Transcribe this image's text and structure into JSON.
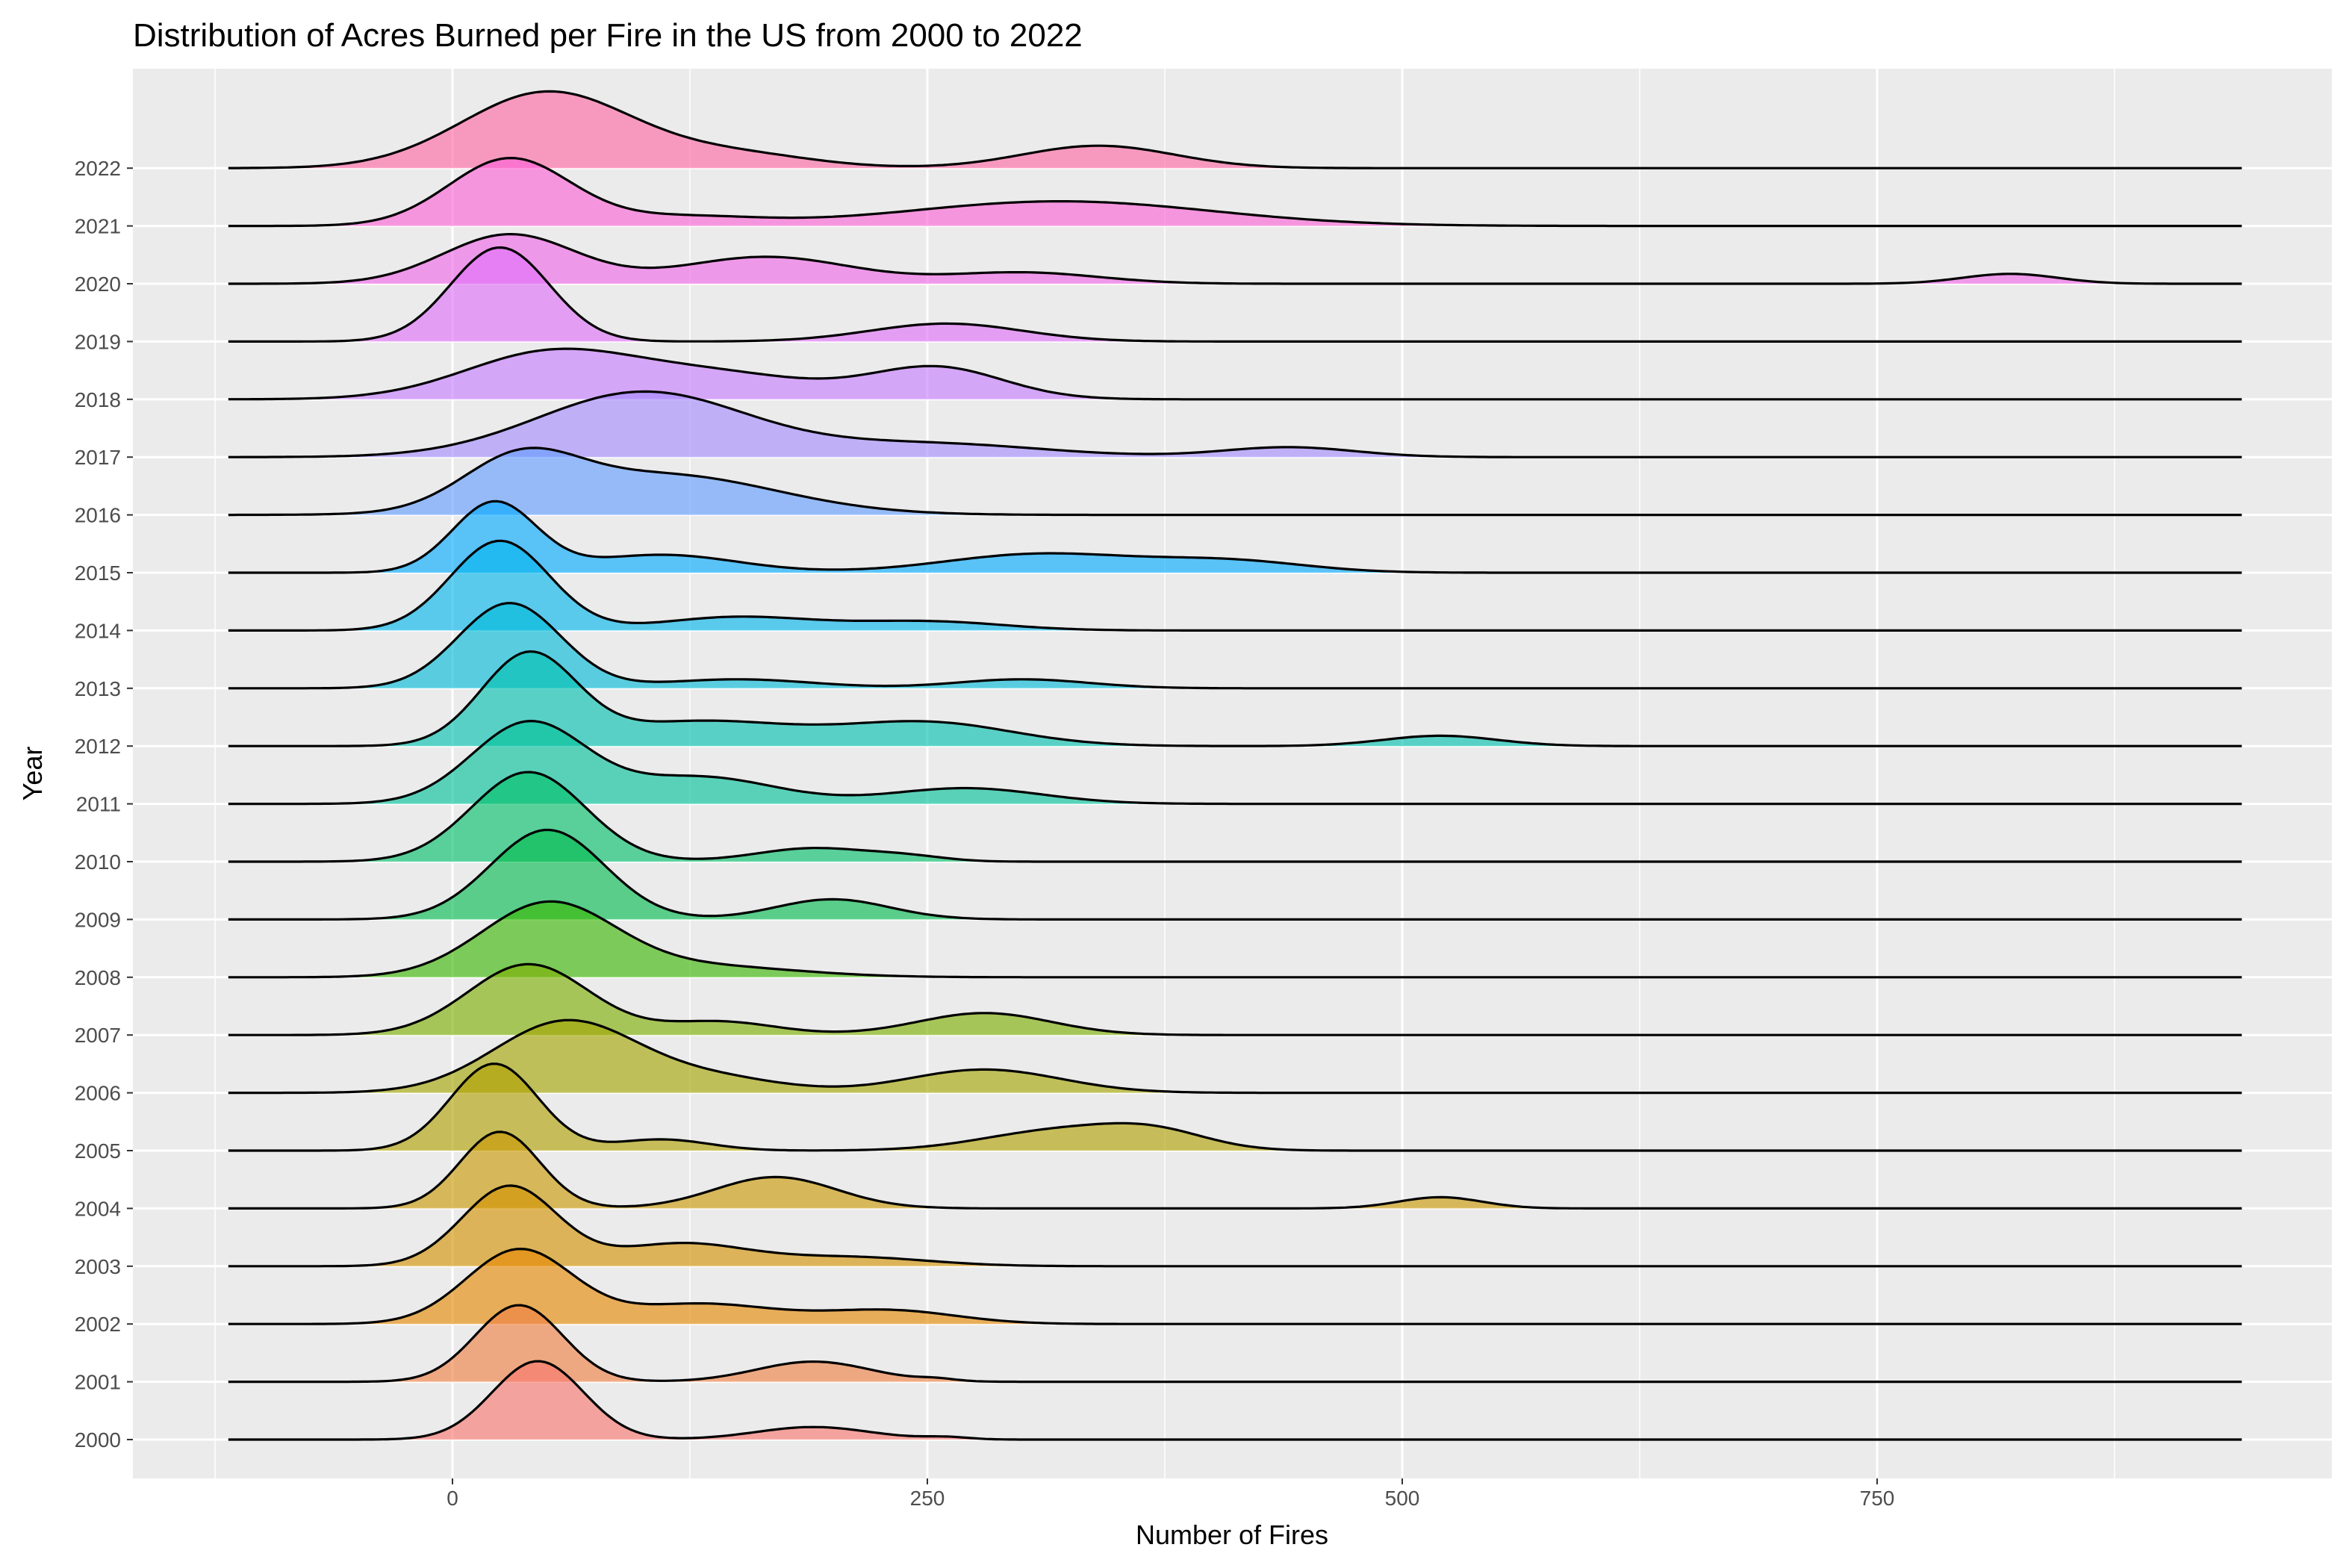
{
  "chart_data": {
    "type": "ridgeline",
    "title": "Distribution of Acres Burned per Fire in the US from 2000 to 2022",
    "xlabel": "Number of Fires",
    "ylabel": "Year",
    "xlim": [
      -170,
      990
    ],
    "x_ticks": [
      0,
      250,
      500,
      750
    ],
    "x_tick_labels": [
      "0",
      "250",
      "500",
      "750"
    ],
    "x_minor_ticks": [
      -125,
      125,
      375,
      625,
      875
    ],
    "density_x_range": [
      -118,
      942
    ],
    "grid": true,
    "background": "#EBEBEB",
    "legend": "none",
    "series": [
      {
        "name": "2000",
        "color": "#F8766D",
        "peaks": [
          [
            45,
            24,
            1.75
          ],
          [
            190,
            30,
            0.28
          ],
          [
            260,
            12,
            0.05
          ]
        ]
      },
      {
        "name": "2001",
        "color": "#EF7F42",
        "peaks": [
          [
            35,
            23,
            1.71
          ],
          [
            190,
            30,
            0.45
          ],
          [
            255,
            10,
            0.05
          ]
        ]
      },
      {
        "name": "2002",
        "color": "#E58700",
        "peaks": [
          [
            35,
            28,
            1.65
          ],
          [
            130,
            40,
            0.45
          ],
          [
            230,
            35,
            0.3
          ]
        ]
      },
      {
        "name": "2003",
        "color": "#D39200",
        "peaks": [
          [
            30,
            25,
            1.78
          ],
          [
            120,
            35,
            0.5
          ],
          [
            210,
            40,
            0.2
          ]
        ]
      },
      {
        "name": "2004",
        "color": "#C99800",
        "peaks": [
          [
            25,
            21,
            1.71
          ],
          [
            170,
            32,
            0.7
          ],
          [
            520,
            22,
            0.25
          ]
        ]
      },
      {
        "name": "2005",
        "color": "#B0A000",
        "peaks": [
          [
            22,
            23,
            1.94
          ],
          [
            110,
            25,
            0.25
          ],
          [
            320,
            40,
            0.45
          ],
          [
            370,
            28,
            0.35
          ]
        ]
      },
      {
        "name": "2006",
        "color": "#A3A500",
        "peaks": [
          [
            60,
            38,
            1.6
          ],
          [
            140,
            35,
            0.3
          ],
          [
            280,
            40,
            0.52
          ]
        ]
      },
      {
        "name": "2007",
        "color": "#7CAE00",
        "peaks": [
          [
            40,
            32,
            1.58
          ],
          [
            140,
            30,
            0.3
          ],
          [
            280,
            35,
            0.49
          ]
        ]
      },
      {
        "name": "2008",
        "color": "#39B600",
        "peaks": [
          [
            50,
            35,
            1.62
          ],
          [
            130,
            50,
            0.25
          ]
        ]
      },
      {
        "name": "2009",
        "color": "#00BB4E",
        "peaks": [
          [
            50,
            30,
            2.0
          ],
          [
            200,
            30,
            0.45
          ]
        ]
      },
      {
        "name": "2010",
        "color": "#00BE67",
        "peaks": [
          [
            40,
            30,
            2.0
          ],
          [
            190,
            30,
            0.3
          ],
          [
            240,
            20,
            0.1
          ]
        ]
      },
      {
        "name": "2011",
        "color": "#00C19A",
        "peaks": [
          [
            40,
            30,
            1.8
          ],
          [
            130,
            40,
            0.6
          ],
          [
            270,
            40,
            0.35
          ]
        ]
      },
      {
        "name": "2012",
        "color": "#00C0AF",
        "peaks": [
          [
            40,
            25,
            2.0
          ],
          [
            130,
            50,
            0.55
          ],
          [
            250,
            45,
            0.52
          ],
          [
            520,
            30,
            0.23
          ]
        ]
      },
      {
        "name": "2013",
        "color": "#00BCD8",
        "peaks": [
          [
            30,
            27,
            1.9
          ],
          [
            150,
            40,
            0.2
          ],
          [
            300,
            35,
            0.2
          ]
        ]
      },
      {
        "name": "2014",
        "color": "#00B5EE",
        "peaks": [
          [
            25,
            26,
            2.0
          ],
          [
            150,
            40,
            0.3
          ],
          [
            250,
            40,
            0.2
          ]
        ]
      },
      {
        "name": "2015",
        "color": "#00A9FF",
        "peaks": [
          [
            22,
            22,
            1.56
          ],
          [
            110,
            40,
            0.4
          ],
          [
            310,
            50,
            0.42
          ],
          [
            410,
            40,
            0.25
          ]
        ]
      },
      {
        "name": "2016",
        "color": "#619CFF",
        "peaks": [
          [
            35,
            30,
            1.05
          ],
          [
            110,
            60,
            0.9
          ]
        ]
      },
      {
        "name": "2017",
        "color": "#A58AFF",
        "peaks": [
          [
            100,
            55,
            1.45
          ],
          [
            250,
            60,
            0.3
          ],
          [
            440,
            35,
            0.22
          ]
        ]
      },
      {
        "name": "2018",
        "color": "#C77CFF",
        "peaks": [
          [
            50,
            45,
            1.0
          ],
          [
            140,
            50,
            0.55
          ],
          [
            255,
            35,
            0.7
          ]
        ]
      },
      {
        "name": "2019",
        "color": "#DF70F8",
        "peaks": [
          [
            25,
            26,
            2.1
          ],
          [
            260,
            40,
            0.4
          ]
        ]
      },
      {
        "name": "2020",
        "color": "#F166E8",
        "peaks": [
          [
            30,
            35,
            1.1
          ],
          [
            165,
            45,
            0.6
          ],
          [
            300,
            40,
            0.25
          ],
          [
            820,
            25,
            0.22
          ]
        ]
      },
      {
        "name": "2021",
        "color": "#FB61D7",
        "peaks": [
          [
            30,
            32,
            1.5
          ],
          [
            120,
            40,
            0.2
          ],
          [
            320,
            80,
            0.55
          ]
        ]
      },
      {
        "name": "2022",
        "color": "#FF67A4",
        "peaks": [
          [
            50,
            45,
            1.7
          ],
          [
            150,
            40,
            0.3
          ],
          [
            340,
            40,
            0.5
          ]
        ]
      }
    ]
  }
}
